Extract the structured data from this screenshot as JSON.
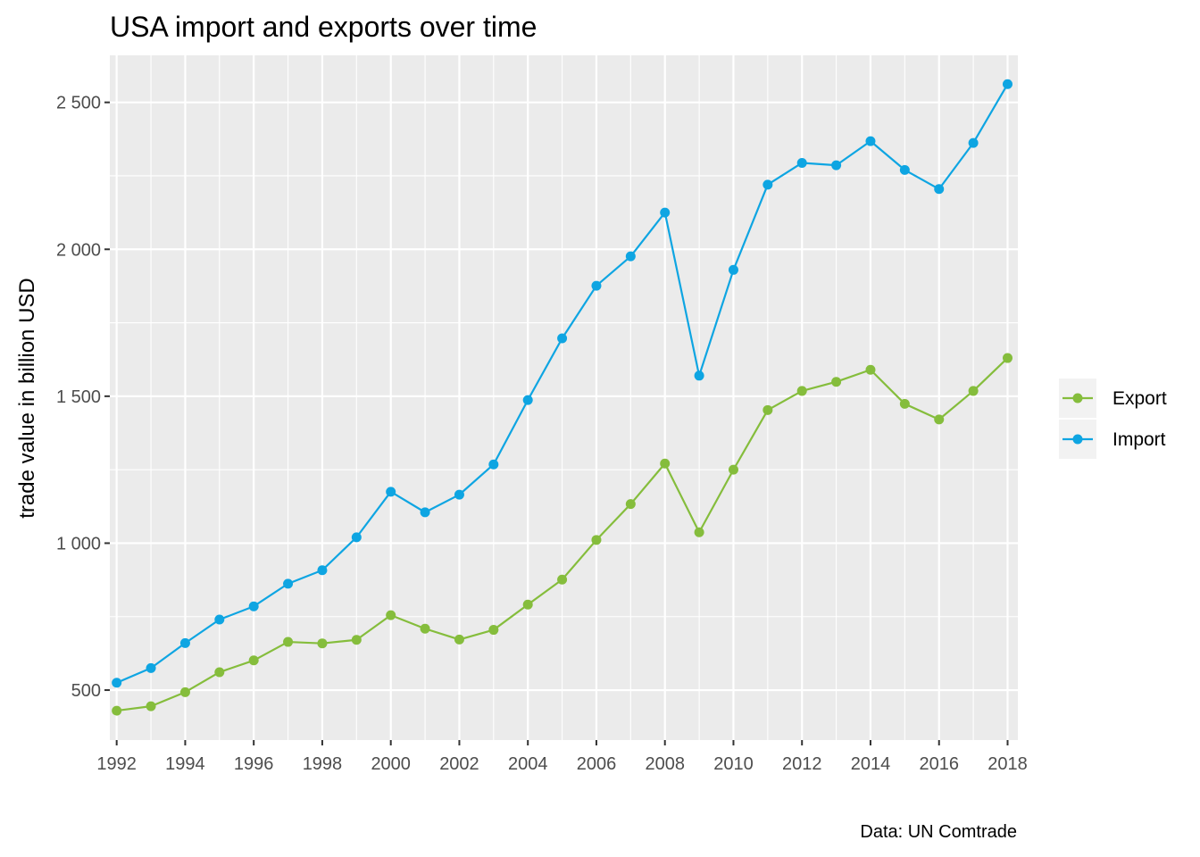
{
  "chart_data": {
    "type": "line",
    "title": "USA import and exports over time",
    "xlabel": "",
    "ylabel": "trade value in billion USD",
    "caption": "Data: UN Comtrade",
    "x": [
      1992,
      1993,
      1994,
      1995,
      1996,
      1997,
      1998,
      1999,
      2000,
      2001,
      2002,
      2003,
      2004,
      2005,
      2006,
      2007,
      2008,
      2009,
      2010,
      2011,
      2012,
      2013,
      2014,
      2015,
      2016,
      2017,
      2018
    ],
    "x_ticks": [
      1992,
      1994,
      1996,
      1998,
      2000,
      2002,
      2004,
      2006,
      2008,
      2010,
      2012,
      2014,
      2016,
      2018
    ],
    "x_tick_labels": [
      "1992",
      "1994",
      "1996",
      "1998",
      "2000",
      "2002",
      "2004",
      "2006",
      "2008",
      "2010",
      "2012",
      "2014",
      "2016",
      "2018"
    ],
    "xlim": [
      1991.8,
      2018.3
    ],
    "y_ticks": [
      500,
      1000,
      1500,
      2000,
      2500
    ],
    "y_tick_labels": [
      "500",
      "1 000",
      "1 500",
      "2 000",
      "2 500"
    ],
    "ylim": [
      330,
      2660
    ],
    "grid": true,
    "legend": "right",
    "series": [
      {
        "name": "Export",
        "color": "#85bd3c",
        "values": [
          430,
          445,
          493,
          561,
          601,
          664,
          659,
          671,
          755,
          709,
          672,
          705,
          791,
          876,
          1011,
          1133,
          1271,
          1037,
          1250,
          1453,
          1518,
          1549,
          1590,
          1474,
          1421,
          1518,
          1630
        ]
      },
      {
        "name": "Import",
        "color": "#0ea5e2",
        "values": [
          525,
          575,
          660,
          740,
          785,
          862,
          908,
          1020,
          1175,
          1105,
          1165,
          1268,
          1487,
          1697,
          1876,
          1976,
          2125,
          1570,
          1930,
          2220,
          2294,
          2286,
          2368,
          2270,
          2205,
          2362,
          2562
        ]
      }
    ]
  }
}
